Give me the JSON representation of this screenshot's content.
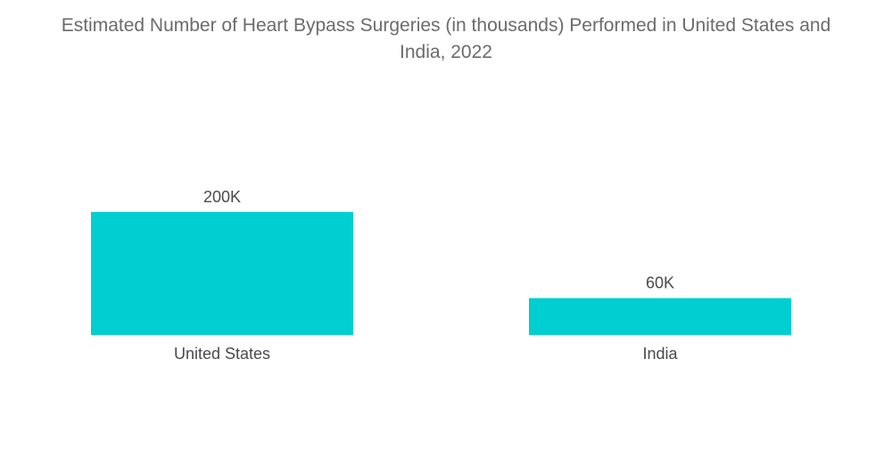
{
  "chart_data": {
    "type": "bar",
    "title": "Estimated Number of Heart Bypass Surgeries (in thousands) Performed in United States and\nIndia, 2022",
    "categories": [
      "United States",
      "India"
    ],
    "values": [
      200,
      60
    ],
    "data_labels": [
      "200K",
      "60K"
    ],
    "xlabel": "",
    "ylabel": "",
    "ylim": [
      0,
      200
    ],
    "grid": false,
    "legend": "none",
    "bar_color": "#00CED1"
  }
}
